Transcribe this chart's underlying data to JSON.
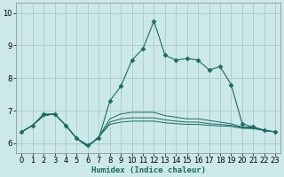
{
  "xlabel": "Humidex (Indice chaleur)",
  "bg_color": "#cce8e8",
  "grid_color": "#aacccc",
  "line_color": "#1a6b60",
  "xlim": [
    -0.5,
    23.5
  ],
  "ylim": [
    5.7,
    10.3
  ],
  "xticks": [
    0,
    1,
    2,
    3,
    4,
    5,
    6,
    7,
    8,
    9,
    10,
    11,
    12,
    13,
    14,
    15,
    16,
    17,
    18,
    19,
    20,
    21,
    22,
    23
  ],
  "yticks": [
    6,
    7,
    8,
    9,
    10
  ],
  "series_main": [
    6.35,
    6.55,
    6.9,
    6.9,
    6.55,
    6.15,
    5.95,
    6.15,
    7.3,
    7.75,
    8.55,
    8.9,
    9.75,
    8.7,
    8.55,
    8.6,
    8.55,
    8.25,
    8.35,
    7.8,
    6.6,
    6.5,
    6.4,
    6.35
  ],
  "series_flat1": [
    6.35,
    6.55,
    6.85,
    6.9,
    6.55,
    6.15,
    5.9,
    6.2,
    6.75,
    6.9,
    6.95,
    6.95,
    6.95,
    6.85,
    6.8,
    6.75,
    6.75,
    6.7,
    6.65,
    6.6,
    6.5,
    6.5,
    6.4,
    6.35
  ],
  "series_flat2": [
    6.35,
    6.55,
    6.85,
    6.9,
    6.55,
    6.15,
    5.9,
    6.2,
    6.65,
    6.75,
    6.78,
    6.78,
    6.78,
    6.72,
    6.68,
    6.65,
    6.65,
    6.6,
    6.58,
    6.55,
    6.48,
    6.47,
    6.4,
    6.35
  ],
  "series_flat3": [
    6.35,
    6.55,
    6.85,
    6.9,
    6.55,
    6.15,
    5.9,
    6.2,
    6.58,
    6.65,
    6.68,
    6.68,
    6.68,
    6.63,
    6.6,
    6.58,
    6.58,
    6.55,
    6.53,
    6.52,
    6.46,
    6.45,
    6.39,
    6.35
  ],
  "marker": "D",
  "marker_size": 2.5
}
